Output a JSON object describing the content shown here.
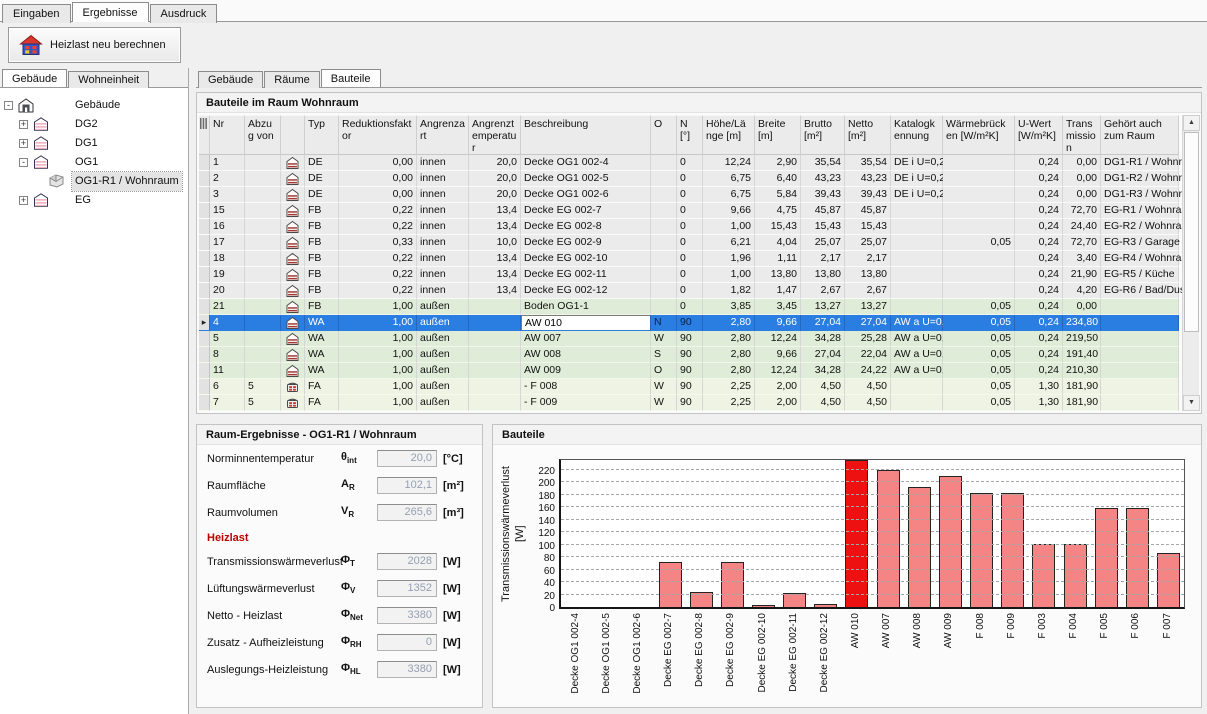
{
  "main_tabs": [
    {
      "label": "Eingaben",
      "active": false
    },
    {
      "label": "Ergebnisse",
      "active": true
    },
    {
      "label": "Ausdruck",
      "active": false
    }
  ],
  "toolbar": {
    "recalc_label": "Heizlast neu berechnen"
  },
  "left_panel": {
    "tabs": [
      {
        "label": "Gebäude",
        "active": true
      },
      {
        "label": "Wohneinheit",
        "active": false
      }
    ],
    "tree": [
      {
        "level": 0,
        "expander": "minus",
        "icon": "house",
        "label": "Gebäude",
        "selected": false
      },
      {
        "level": 1,
        "expander": "plus",
        "icon": "building",
        "label": "DG2",
        "selected": false
      },
      {
        "level": 1,
        "expander": "plus",
        "icon": "building",
        "label": "DG1",
        "selected": false
      },
      {
        "level": 1,
        "expander": "minus",
        "icon": "building",
        "label": "OG1",
        "selected": false
      },
      {
        "level": 2,
        "expander": null,
        "icon": "room",
        "label": "OG1-R1 / Wohnraum",
        "selected": true
      },
      {
        "level": 1,
        "expander": "plus",
        "icon": "building",
        "label": "EG",
        "selected": false
      }
    ]
  },
  "right_tabs": [
    {
      "label": "Gebäude",
      "active": false
    },
    {
      "label": "Räume",
      "active": false
    },
    {
      "label": "Bauteile",
      "active": true
    }
  ],
  "grid": {
    "title": "Bauteile im Raum Wohnraum",
    "columns": [
      {
        "key": "ind",
        "label": ""
      },
      {
        "key": "nr",
        "label": "Nr"
      },
      {
        "key": "abzug",
        "label": "Abzug von"
      },
      {
        "key": "icon",
        "label": ""
      },
      {
        "key": "typ",
        "label": "Typ"
      },
      {
        "key": "red",
        "label": "Reduktionsfaktor"
      },
      {
        "key": "art",
        "label": "Angrenzart"
      },
      {
        "key": "temp",
        "label": "Angrenztemperatur"
      },
      {
        "key": "beschr",
        "label": "Beschreibung"
      },
      {
        "key": "o",
        "label": "O"
      },
      {
        "key": "n",
        "label": "N [°]"
      },
      {
        "key": "hoehe",
        "label": "Höhe/Länge [m]"
      },
      {
        "key": "breite",
        "label": "Breite [m]"
      },
      {
        "key": "brutto",
        "label": "Brutto [m²]"
      },
      {
        "key": "netto",
        "label": "Netto [m²]"
      },
      {
        "key": "katalog",
        "label": "Katalogkennung"
      },
      {
        "key": "wb",
        "label": "Wärmebrücken [W/m²K]"
      },
      {
        "key": "uwert",
        "label": "U-Wert [W/m²K]"
      },
      {
        "key": "trans",
        "label": "Transmission"
      },
      {
        "key": "gehoert",
        "label": "Gehört auch zum Raum"
      }
    ],
    "rows": [
      {
        "nr": "1",
        "abzug": "",
        "icon": "building",
        "typ": "DE",
        "red": "0,00",
        "art": "innen",
        "temp": "20,0",
        "beschr": "Decke OG1 002-4",
        "o": "",
        "n": "0",
        "hoehe": "12,24",
        "breite": "2,90",
        "brutto": "35,54",
        "netto": "35,54",
        "katalog": "DE i U=0,2",
        "wb": "",
        "uwert": "0,24",
        "trans": "0,00",
        "gehoert": "DG1-R1 / Wohnra",
        "style": "gray",
        "selected": false,
        "editing": false
      },
      {
        "nr": "2",
        "abzug": "",
        "icon": "building",
        "typ": "DE",
        "red": "0,00",
        "art": "innen",
        "temp": "20,0",
        "beschr": "Decke OG1 002-5",
        "o": "",
        "n": "0",
        "hoehe": "6,75",
        "breite": "6,40",
        "brutto": "43,23",
        "netto": "43,23",
        "katalog": "DE i U=0,2",
        "wb": "",
        "uwert": "0,24",
        "trans": "0,00",
        "gehoert": "DG1-R2 / Wohnra",
        "style": "gray",
        "selected": false,
        "editing": false
      },
      {
        "nr": "3",
        "abzug": "",
        "icon": "building",
        "typ": "DE",
        "red": "0,00",
        "art": "innen",
        "temp": "20,0",
        "beschr": "Decke OG1 002-6",
        "o": "",
        "n": "0",
        "hoehe": "6,75",
        "breite": "5,84",
        "brutto": "39,43",
        "netto": "39,43",
        "katalog": "DE i U=0,2",
        "wb": "",
        "uwert": "0,24",
        "trans": "0,00",
        "gehoert": "DG1-R3 / Wohnra",
        "style": "gray",
        "selected": false,
        "editing": false
      },
      {
        "nr": "15",
        "abzug": "",
        "icon": "building",
        "typ": "FB",
        "red": "0,22",
        "art": "innen",
        "temp": "13,4",
        "beschr": "Decke EG 002-7",
        "o": "",
        "n": "0",
        "hoehe": "9,66",
        "breite": "4,75",
        "brutto": "45,87",
        "netto": "45,87",
        "katalog": "",
        "wb": "",
        "uwert": "0,24",
        "trans": "72,70",
        "gehoert": "EG-R1 / Wohnrau",
        "style": "gray",
        "selected": false,
        "editing": false
      },
      {
        "nr": "16",
        "abzug": "",
        "icon": "building",
        "typ": "FB",
        "red": "0,22",
        "art": "innen",
        "temp": "13,4",
        "beschr": "Decke EG 002-8",
        "o": "",
        "n": "0",
        "hoehe": "1,00",
        "breite": "15,43",
        "brutto": "15,43",
        "netto": "15,43",
        "katalog": "",
        "wb": "",
        "uwert": "0,24",
        "trans": "24,40",
        "gehoert": "EG-R2 / Wohnrau",
        "style": "gray",
        "selected": false,
        "editing": false
      },
      {
        "nr": "17",
        "abzug": "",
        "icon": "building",
        "typ": "FB",
        "red": "0,33",
        "art": "innen",
        "temp": "10,0",
        "beschr": "Decke EG 002-9",
        "o": "",
        "n": "0",
        "hoehe": "6,21",
        "breite": "4,04",
        "brutto": "25,07",
        "netto": "25,07",
        "katalog": "",
        "wb": "0,05",
        "uwert": "0,24",
        "trans": "72,70",
        "gehoert": "EG-R3 / Garage",
        "style": "gray",
        "selected": false,
        "editing": false
      },
      {
        "nr": "18",
        "abzug": "",
        "icon": "building",
        "typ": "FB",
        "red": "0,22",
        "art": "innen",
        "temp": "13,4",
        "beschr": "Decke EG 002-10",
        "o": "",
        "n": "0",
        "hoehe": "1,96",
        "breite": "1,11",
        "brutto": "2,17",
        "netto": "2,17",
        "katalog": "",
        "wb": "",
        "uwert": "0,24",
        "trans": "3,40",
        "gehoert": "EG-R4 / Wohnrau",
        "style": "gray",
        "selected": false,
        "editing": false
      },
      {
        "nr": "19",
        "abzug": "",
        "icon": "building",
        "typ": "FB",
        "red": "0,22",
        "art": "innen",
        "temp": "13,4",
        "beschr": "Decke EG 002-11",
        "o": "",
        "n": "0",
        "hoehe": "1,00",
        "breite": "13,80",
        "brutto": "13,80",
        "netto": "13,80",
        "katalog": "",
        "wb": "",
        "uwert": "0,24",
        "trans": "21,90",
        "gehoert": "EG-R5 / Küche",
        "style": "gray",
        "selected": false,
        "editing": false
      },
      {
        "nr": "20",
        "abzug": "",
        "icon": "building",
        "typ": "FB",
        "red": "0,22",
        "art": "innen",
        "temp": "13,4",
        "beschr": "Decke EG 002-12",
        "o": "",
        "n": "0",
        "hoehe": "1,82",
        "breite": "1,47",
        "brutto": "2,67",
        "netto": "2,67",
        "katalog": "",
        "wb": "",
        "uwert": "0,24",
        "trans": "4,20",
        "gehoert": "EG-R6 / Bad/Dusc",
        "style": "gray",
        "selected": false,
        "editing": false
      },
      {
        "nr": "21",
        "abzug": "",
        "icon": "building",
        "typ": "FB",
        "red": "1,00",
        "art": "außen",
        "temp": "",
        "beschr": "Boden OG1-1",
        "o": "",
        "n": "0",
        "hoehe": "3,85",
        "breite": "3,45",
        "brutto": "13,27",
        "netto": "13,27",
        "katalog": "",
        "wb": "0,05",
        "uwert": "0,24",
        "trans": "0,00",
        "gehoert": "",
        "style": "green",
        "selected": false,
        "editing": false
      },
      {
        "nr": "4",
        "abzug": "",
        "icon": "building",
        "typ": "WA",
        "red": "1,00",
        "art": "außen",
        "temp": "",
        "beschr": "AW 010",
        "o": "N",
        "n": "90",
        "hoehe": "2,80",
        "breite": "9,66",
        "brutto": "27,04",
        "netto": "27,04",
        "katalog": "AW a U=0,",
        "wb": "0,05",
        "uwert": "0,24",
        "trans": "234,80",
        "gehoert": "",
        "style": "green",
        "selected": true,
        "editing": true
      },
      {
        "nr": "5",
        "abzug": "",
        "icon": "building",
        "typ": "WA",
        "red": "1,00",
        "art": "außen",
        "temp": "",
        "beschr": "AW 007",
        "o": "W",
        "n": "90",
        "hoehe": "2,80",
        "breite": "12,24",
        "brutto": "34,28",
        "netto": "25,28",
        "katalog": "AW a U=0,",
        "wb": "0,05",
        "uwert": "0,24",
        "trans": "219,50",
        "gehoert": "",
        "style": "green",
        "selected": false,
        "editing": false
      },
      {
        "nr": "8",
        "abzug": "",
        "icon": "building",
        "typ": "WA",
        "red": "1,00",
        "art": "außen",
        "temp": "",
        "beschr": "AW 008",
        "o": "S",
        "n": "90",
        "hoehe": "2,80",
        "breite": "9,66",
        "brutto": "27,04",
        "netto": "22,04",
        "katalog": "AW a U=0,",
        "wb": "0,05",
        "uwert": "0,24",
        "trans": "191,40",
        "gehoert": "",
        "style": "green",
        "selected": false,
        "editing": false
      },
      {
        "nr": "11",
        "abzug": "",
        "icon": "building",
        "typ": "WA",
        "red": "1,00",
        "art": "außen",
        "temp": "",
        "beschr": "AW 009",
        "o": "O",
        "n": "90",
        "hoehe": "2,80",
        "breite": "12,24",
        "brutto": "34,28",
        "netto": "24,22",
        "katalog": "AW a U=0,",
        "wb": "0,05",
        "uwert": "0,24",
        "trans": "210,30",
        "gehoert": "",
        "style": "green",
        "selected": false,
        "editing": false
      },
      {
        "nr": "6",
        "abzug": "5",
        "icon": "window",
        "typ": "FA",
        "red": "1,00",
        "art": "außen",
        "temp": "",
        "beschr": " - F 008",
        "o": "W",
        "n": "90",
        "hoehe": "2,25",
        "breite": "2,00",
        "brutto": "4,50",
        "netto": "4,50",
        "katalog": "",
        "wb": "0,05",
        "uwert": "1,30",
        "trans": "181,90",
        "gehoert": "",
        "style": "pale",
        "selected": false,
        "editing": false
      },
      {
        "nr": "7",
        "abzug": "5",
        "icon": "window",
        "typ": "FA",
        "red": "1,00",
        "art": "außen",
        "temp": "",
        "beschr": " - F 009",
        "o": "W",
        "n": "90",
        "hoehe": "2,25",
        "breite": "2,00",
        "brutto": "4,50",
        "netto": "4,50",
        "katalog": "",
        "wb": "0,05",
        "uwert": "1,30",
        "trans": "181,90",
        "gehoert": "",
        "style": "pale",
        "selected": false,
        "editing": false
      }
    ]
  },
  "room_results": {
    "title": "Raum-Ergebnisse - OG1-R1 / Wohnraum",
    "fields": [
      {
        "label": "Norminnentemperatur",
        "sym": "θ",
        "sub": "int",
        "value": "20,0",
        "unit": "[°C]"
      },
      {
        "label": "Raumfläche",
        "sym": "A",
        "sub": "R",
        "value": "102,1",
        "unit": "[m²]"
      },
      {
        "label": "Raumvolumen",
        "sym": "V",
        "sub": "R",
        "value": "265,6",
        "unit": "[m³]"
      },
      {
        "section": "Heizlast"
      },
      {
        "label": "Transmissionswärmeverlust",
        "sym": "Φ",
        "sub": "T",
        "value": "2028",
        "unit": "[W]"
      },
      {
        "label": "Lüftungswärmeverlust",
        "sym": "Φ",
        "sub": "V",
        "value": "1352",
        "unit": "[W]"
      },
      {
        "label": "Netto - Heizlast",
        "sym": "Φ",
        "sub": "Net",
        "value": "3380",
        "unit": "[W]"
      },
      {
        "label": "Zusatz - Aufheizleistung",
        "sym": "Φ",
        "sub": "RH",
        "value": "0",
        "unit": "[W]"
      },
      {
        "label": "Auslegungs-Heizleistung",
        "sym": "Φ",
        "sub": "HL",
        "value": "3380",
        "unit": "[W]"
      }
    ]
  },
  "chart_panel": {
    "title": "Bauteile"
  },
  "chart_data": {
    "type": "bar",
    "title": "Bauteile",
    "ylabel": "Transmissionswärmeverlust [W]",
    "ylim": [
      0,
      240
    ],
    "ytick_step": 20,
    "yticks_max": 220,
    "grid": "dashed-horizontal",
    "categories": [
      "Decke OG1 002-4",
      "Decke OG1 002-5",
      "Decke OG1 002-6",
      "Decke EG 002-7",
      "Decke EG 002-8",
      "Decke EG 002-9",
      "Decke EG 002-10",
      "Decke EG 002-11",
      "Decke EG 002-12",
      "AW 010",
      "AW 007",
      "AW 008",
      "AW 009",
      "F 008",
      "F 009",
      "F 003",
      "F 004",
      "F 005",
      "F 006",
      "F 007"
    ],
    "values": [
      0,
      0,
      0,
      72.7,
      24.4,
      72.7,
      3.4,
      21.9,
      4.2,
      234.8,
      219.5,
      191.4,
      210.3,
      181.9,
      181.9,
      100,
      100,
      158,
      158,
      87
    ],
    "highlighted_index": 9,
    "highlighted_category": "AW 010",
    "bar_color": "#f58585",
    "highlight_color": "#ee1111"
  }
}
